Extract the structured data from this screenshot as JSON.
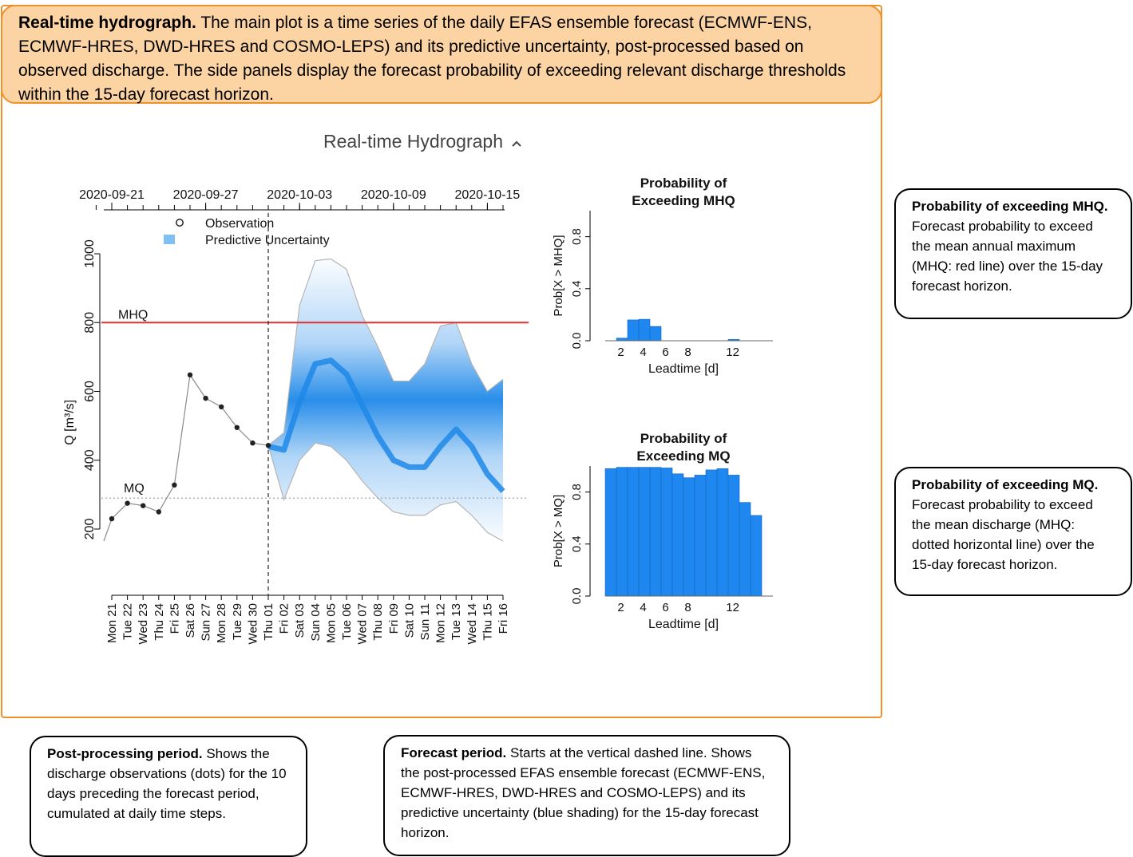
{
  "top_callout": {
    "title": "Real-time hydrograph.",
    "text": " The main plot is a time series of the daily EFAS ensemble forecast (ECMWF-ENS, ECMWF-HRES, DWD-HRES and COSMO-LEPS) and its predictive uncertainty, post-processed based on observed discharge. The side panels display the forecast probability of exceeding relevant discharge thresholds within the 15-day forecast horizon."
  },
  "panel_title": "Real-time Hydrograph",
  "panel_title_icon": "chevron-up-icon",
  "callouts": {
    "mhq": {
      "title": "Probability of exceeding MHQ.",
      "text": " Forecast probability to exceed the mean annual maximum (MHQ: red line) over the 15-day forecast horizon."
    },
    "mq": {
      "title": "Probability of exceeding MQ.",
      "text": " Forecast probability to exceed the mean discharge (MHQ: dotted horizontal line) over the 15-day forecast horizon."
    },
    "post": {
      "title": "Post-processing period.",
      "text": " Shows the discharge observations (dots) for the 10 days preceding the forecast period, cumulated at daily time steps."
    },
    "forecast": {
      "title": "Forecast period.",
      "text": " Starts at the vertical dashed line. Shows the post-processed EFAS ensemble forecast (ECMWF-ENS, ECMWF-HRES, DWD-HRES and COSMO-LEPS) and its predictive uncertainty (blue shading) for the 15-day forecast horizon."
    }
  },
  "colors": {
    "accent_orange": "#f0922b",
    "callout_fill": "#fcd4a4",
    "mhq_red": "#e03030",
    "bar_blue": "#1e88f0",
    "band_blue": "#1e88e8"
  },
  "chart_data": [
    {
      "type": "line",
      "ylabel": "Q [m³/s]",
      "ylim": [
        150,
        1050
      ],
      "yticks": [
        200,
        400,
        600,
        800,
        1000
      ],
      "top_axis_labels": [
        "2020-09-21",
        "2020-09-27",
        "2020-10-03",
        "2020-10-09",
        "2020-10-15"
      ],
      "x": [
        "Mon 21",
        "Tue 22",
        "Wed 23",
        "Thu 24",
        "Fri 25",
        "Sat 26",
        "Sun 27",
        "Mon 28",
        "Tue 29",
        "Wed 30",
        "Thu 01",
        "Fri 02",
        "Sat 03",
        "Sun 04",
        "Mon 05",
        "Tue 06",
        "Wed 07",
        "Thu 08",
        "Fri 09",
        "Sat 10",
        "Sun 11",
        "Mon 12",
        "Tue 13",
        "Wed 14",
        "Thu 15",
        "Fri 16"
      ],
      "legend": [
        "Observation",
        "Predictive Uncertainty"
      ],
      "thresholds": {
        "MHQ": 800,
        "MQ": 290
      },
      "forecast_start": "Thu 01",
      "observations": [
        {
          "x": "Mon 21",
          "y": 230
        },
        {
          "x": "Tue 22",
          "y": 275
        },
        {
          "x": "Wed 23",
          "y": 268
        },
        {
          "x": "Thu 24",
          "y": 250
        },
        {
          "x": "Fri 25",
          "y": 328
        },
        {
          "x": "Sat 26",
          "y": 648
        },
        {
          "x": "Sun 27",
          "y": 580
        },
        {
          "x": "Mon 28",
          "y": 555
        },
        {
          "x": "Tue 29",
          "y": 495
        },
        {
          "x": "Wed 30",
          "y": 450
        },
        {
          "x": "Thu 01",
          "y": 443
        }
      ],
      "obs_line_start": 165,
      "forecast_x": [
        "Thu 01",
        "Fri 02",
        "Sat 03",
        "Sun 04",
        "Mon 05",
        "Tue 06",
        "Wed 07",
        "Thu 08",
        "Fri 09",
        "Sat 10",
        "Sun 11",
        "Mon 12",
        "Tue 13",
        "Wed 14",
        "Thu 15",
        "Fri 16"
      ],
      "forecast_median": [
        440,
        430,
        570,
        680,
        690,
        650,
        560,
        470,
        400,
        380,
        380,
        440,
        490,
        440,
        360,
        310
      ],
      "forecast_upper": [
        443,
        480,
        850,
        980,
        985,
        955,
        820,
        730,
        630,
        630,
        680,
        790,
        800,
        680,
        600,
        635
      ],
      "forecast_lower": [
        443,
        285,
        400,
        450,
        440,
        400,
        340,
        290,
        250,
        240,
        240,
        270,
        280,
        240,
        190,
        165
      ]
    },
    {
      "type": "bar",
      "title": "Probability of Exceeding MHQ",
      "xlabel": "Leadtime [d]",
      "ylabel": "Prob[X > MHQ]",
      "ylim": [
        0,
        1
      ],
      "yticks": [
        0.0,
        0.4,
        0.8
      ],
      "xticks": [
        2,
        4,
        6,
        8,
        12
      ],
      "categories": [
        1,
        2,
        3,
        4,
        5,
        6,
        7,
        8,
        9,
        10,
        11,
        12,
        13,
        14,
        15
      ],
      "values": [
        0.0,
        0.02,
        0.16,
        0.165,
        0.11,
        0.0,
        0.0,
        0.0,
        0.0,
        0.0,
        0.0,
        0.01,
        0.0,
        0.0,
        0.0
      ]
    },
    {
      "type": "bar",
      "title": "Probability of Exceeding MQ",
      "xlabel": "Leadtime [d]",
      "ylabel": "Prob[X > MQ]",
      "ylim": [
        0,
        1
      ],
      "yticks": [
        0.0,
        0.4,
        0.8
      ],
      "xticks": [
        2,
        4,
        6,
        8,
        12
      ],
      "categories": [
        1,
        2,
        3,
        4,
        5,
        6,
        7,
        8,
        9,
        10,
        11,
        12,
        13,
        14,
        15
      ],
      "values": [
        0.98,
        0.99,
        0.99,
        0.99,
        0.99,
        0.985,
        0.94,
        0.91,
        0.93,
        0.97,
        0.98,
        0.93,
        0.72,
        0.62,
        0.0
      ]
    }
  ]
}
